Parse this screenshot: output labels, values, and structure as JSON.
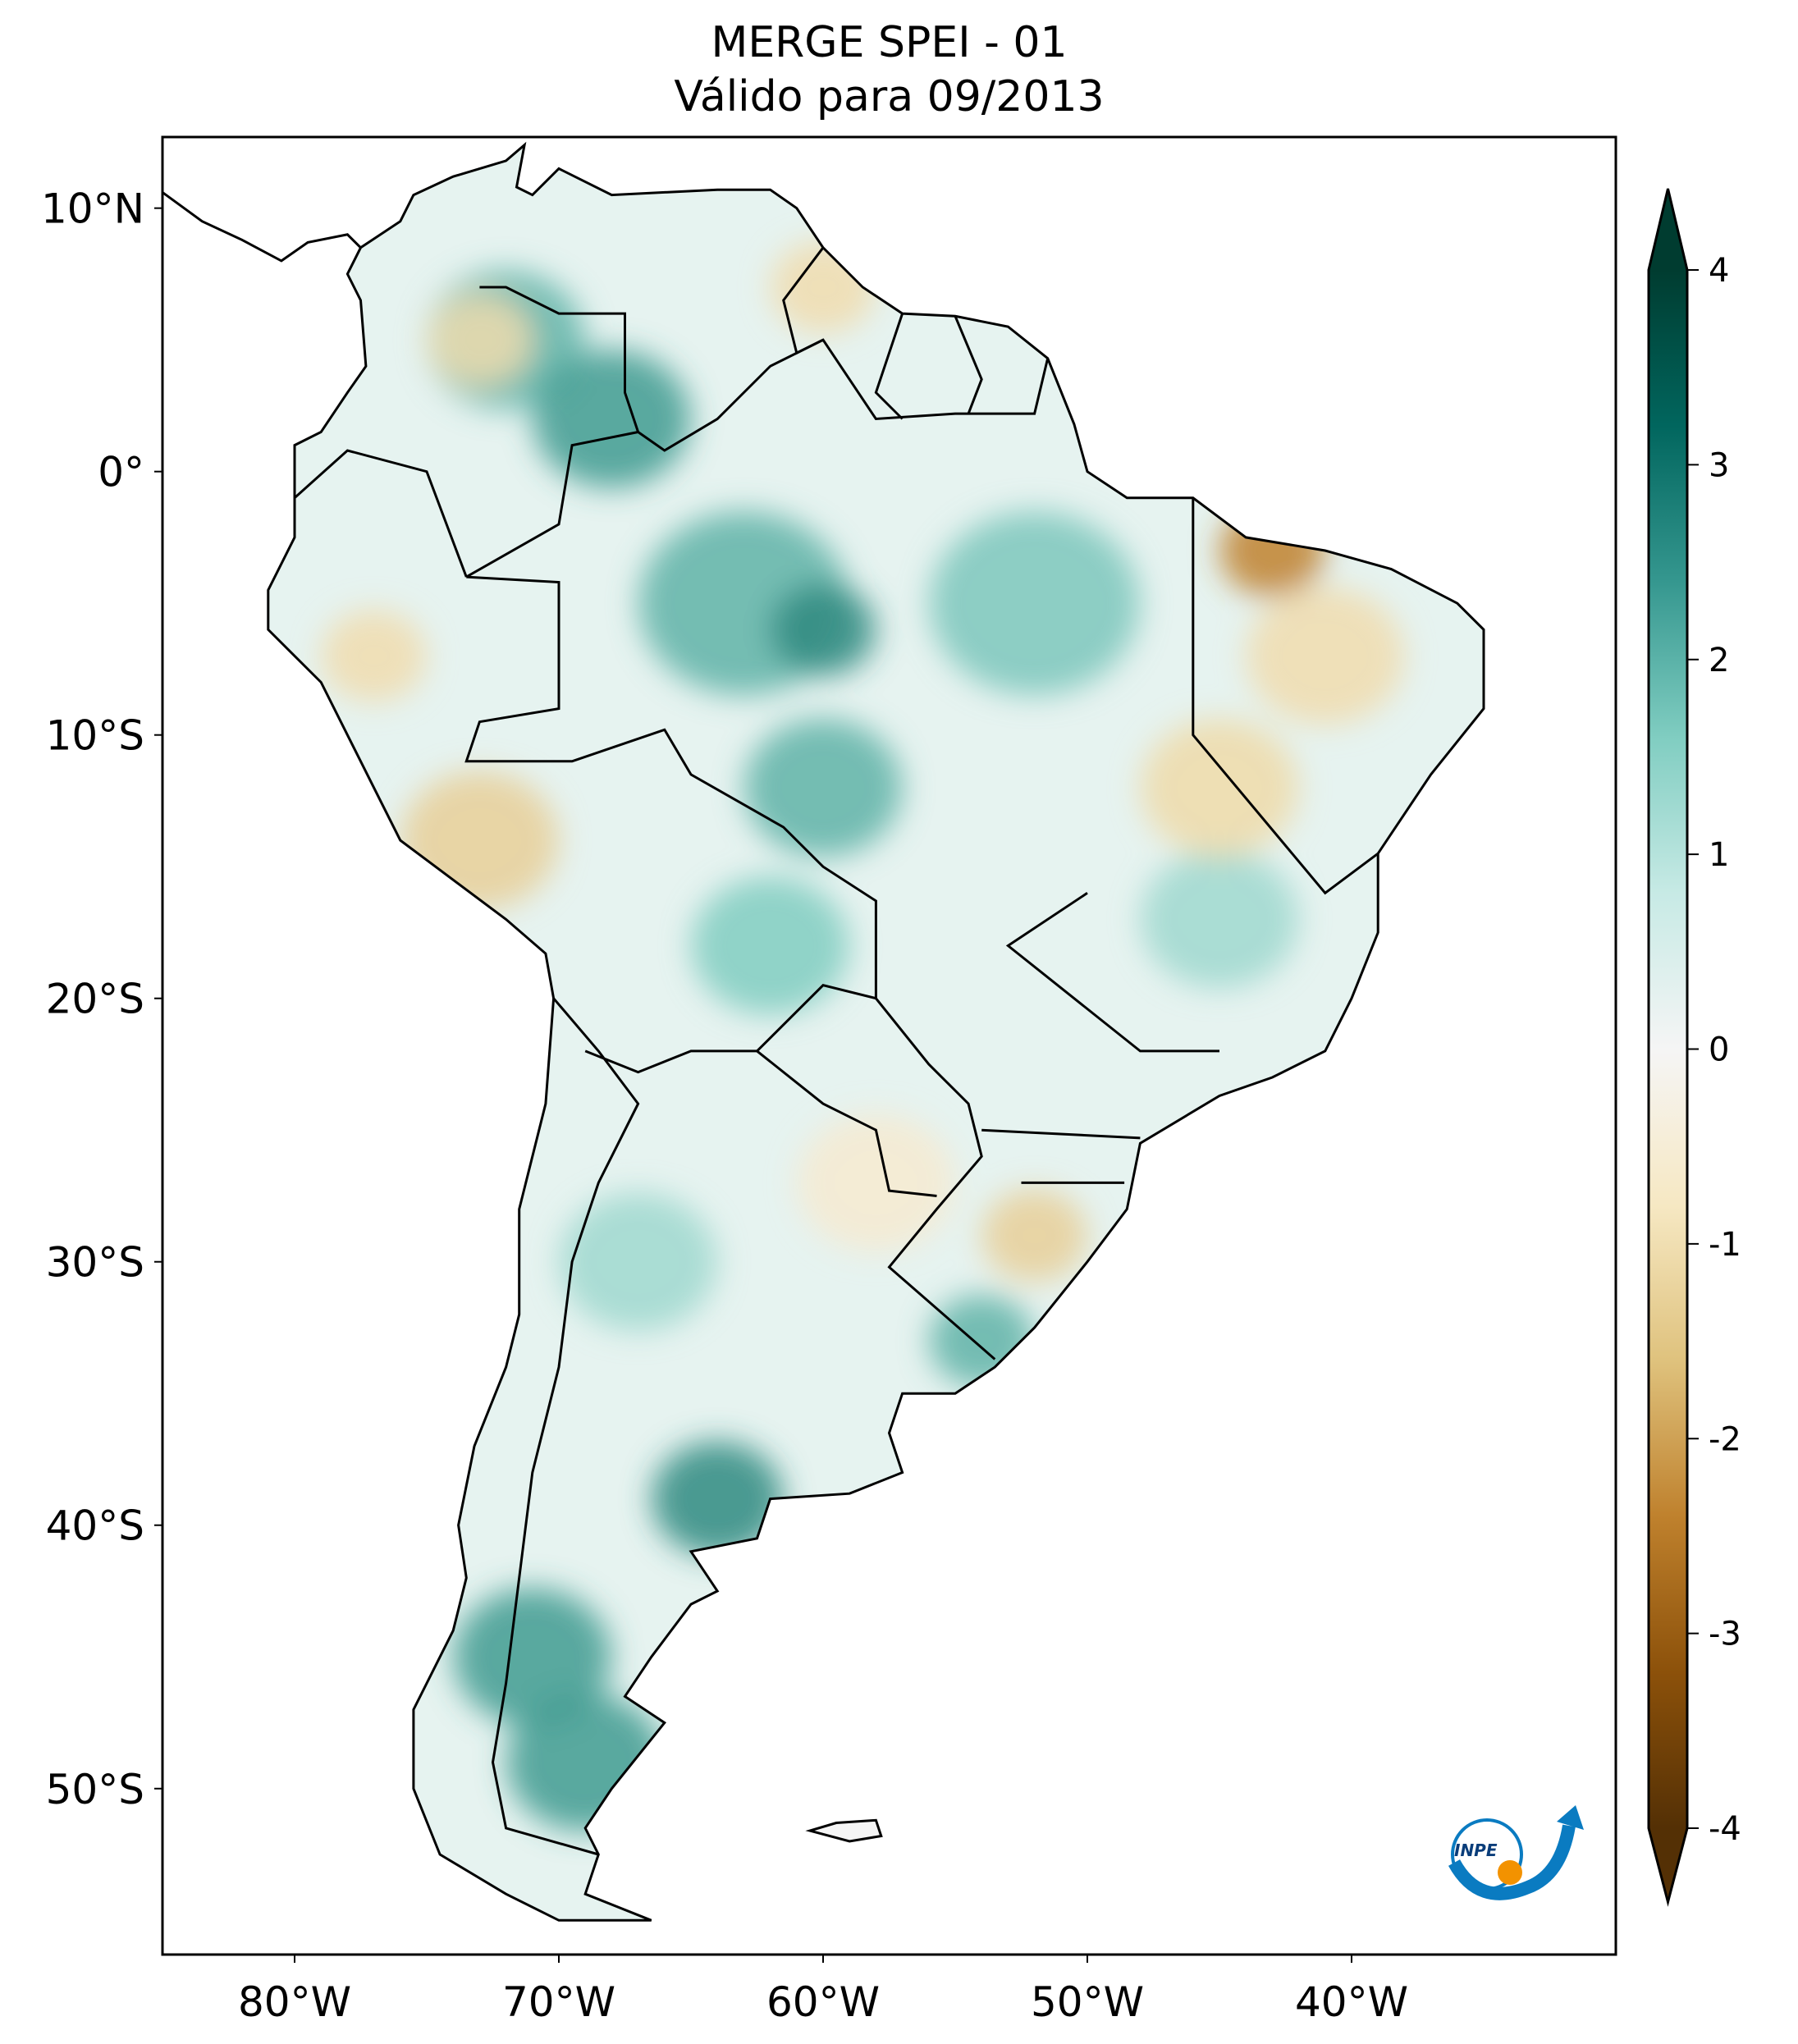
{
  "chart_data": {
    "type": "heatmap",
    "title": "MERGE   SPEI - 01",
    "subtitle": "Válido para 09/2013",
    "xlabel": "",
    "ylabel": "",
    "x_ticks": [
      -80,
      -70,
      -60,
      -50,
      -40
    ],
    "x_tick_labels": [
      "80°W",
      "70°W",
      "60°W",
      "50°W",
      "40°W"
    ],
    "y_ticks": [
      10,
      0,
      -10,
      -20,
      -30,
      -40,
      -50
    ],
    "y_tick_labels": [
      "10°N",
      "0°",
      "10°S",
      "20°S",
      "30°S",
      "40°S",
      "50°S"
    ],
    "xlim": [
      -85,
      -30
    ],
    "ylim": [
      -56.3,
      12.7
    ],
    "grid": false,
    "colorbar": {
      "colormap": "BrBG",
      "range": [
        -4,
        4
      ],
      "extend": "both",
      "ticks": [
        4,
        3,
        2,
        1,
        0,
        -1,
        -2,
        -3,
        -4
      ],
      "tick_labels": [
        "4",
        "3",
        "2",
        "1",
        "0",
        "-1",
        "-2",
        "-3",
        "-4"
      ],
      "colors": [
        "#543005",
        "#8c510a",
        "#bf812d",
        "#dfc27d",
        "#f6e8c3",
        "#f5f5f5",
        "#c7eae5",
        "#80cdc1",
        "#35978f",
        "#01665e",
        "#003c30"
      ]
    },
    "logo_text": "INPE"
  }
}
